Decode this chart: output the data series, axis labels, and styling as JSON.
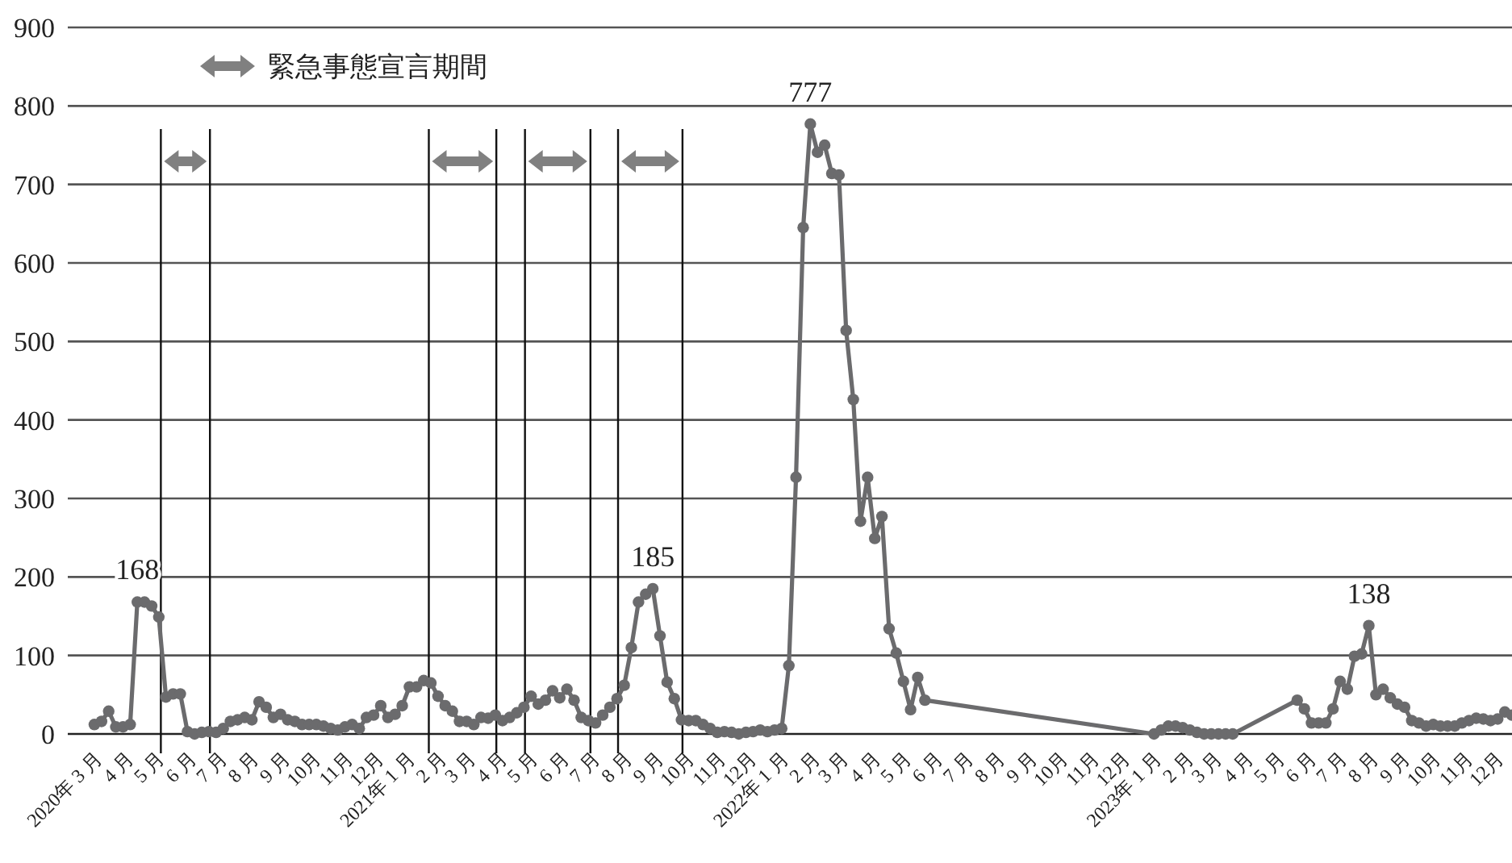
{
  "chart_data": {
    "type": "line",
    "marker": "circle",
    "line_style": "solid",
    "grid": "y",
    "xlim": [
      "2020-01-31",
      "2023-12-13"
    ],
    "xticks": [
      {
        "value": "2020-03",
        "label": "2020年 3 月"
      },
      {
        "value": "2020-04",
        "label": "4 月"
      },
      {
        "value": "2020-05",
        "label": "5 月"
      },
      {
        "value": "2020-06",
        "label": "6 月"
      },
      {
        "value": "2020-07",
        "label": "7 月"
      },
      {
        "value": "2020-08",
        "label": "8 月"
      },
      {
        "value": "2020-09",
        "label": "9 月"
      },
      {
        "value": "2020-10",
        "label": "10月"
      },
      {
        "value": "2020-11",
        "label": "11月"
      },
      {
        "value": "2020-12",
        "label": "12月"
      },
      {
        "value": "2021-01",
        "label": "2021年 1 月"
      },
      {
        "value": "2021-02",
        "label": "2 月"
      },
      {
        "value": "2021-03",
        "label": "3 月"
      },
      {
        "value": "2021-04",
        "label": "4 月"
      },
      {
        "value": "2021-05",
        "label": "5 月"
      },
      {
        "value": "2021-06",
        "label": "6 月"
      },
      {
        "value": "2021-07",
        "label": "7 月"
      },
      {
        "value": "2021-08",
        "label": "8 月"
      },
      {
        "value": "2021-09",
        "label": "9 月"
      },
      {
        "value": "2021-10",
        "label": "10月"
      },
      {
        "value": "2021-11",
        "label": "11月"
      },
      {
        "value": "2021-12",
        "label": "12月"
      },
      {
        "value": "2022-01",
        "label": "2022年 1 月"
      },
      {
        "value": "2022-02",
        "label": "2 月"
      },
      {
        "value": "2022-03",
        "label": "3 月"
      },
      {
        "value": "2022-04",
        "label": "4 月"
      },
      {
        "value": "2022-05",
        "label": "5 月"
      },
      {
        "value": "2022-06",
        "label": "6 月"
      },
      {
        "value": "2022-07",
        "label": "7 月"
      },
      {
        "value": "2022-08",
        "label": "8 月"
      },
      {
        "value": "2022-09",
        "label": "9 月"
      },
      {
        "value": "2022-10",
        "label": "10月"
      },
      {
        "value": "2022-11",
        "label": "11月"
      },
      {
        "value": "2022-12",
        "label": "12月"
      },
      {
        "value": "2023-01",
        "label": "2023年 1 月"
      },
      {
        "value": "2023-02",
        "label": "2 月"
      },
      {
        "value": "2023-03",
        "label": "3 月"
      },
      {
        "value": "2023-04",
        "label": "4 月"
      },
      {
        "value": "2023-05",
        "label": "5 月"
      },
      {
        "value": "2023-06",
        "label": "6 月"
      },
      {
        "value": "2023-07",
        "label": "7 月"
      },
      {
        "value": "2023-08",
        "label": "8 月"
      },
      {
        "value": "2023-09",
        "label": "9 月"
      },
      {
        "value": "2023-10",
        "label": "10月"
      },
      {
        "value": "2023-11",
        "label": "11月"
      },
      {
        "value": "2023-12",
        "label": "12月"
      }
    ],
    "ylim": [
      0,
      900
    ],
    "yticks": [
      0,
      100,
      200,
      300,
      400,
      500,
      600,
      700,
      800,
      900
    ],
    "ref_lines": [
      {
        "axis": "x",
        "value": "2020-05-01",
        "color": "#111111"
      },
      {
        "axis": "x",
        "value": "2020-06-18",
        "color": "#111111"
      },
      {
        "axis": "x",
        "value": "2021-01-18",
        "color": "#111111"
      },
      {
        "axis": "x",
        "value": "2021-03-25",
        "color": "#111111"
      },
      {
        "axis": "x",
        "value": "2021-04-22",
        "color": "#111111"
      },
      {
        "axis": "x",
        "value": "2021-06-25",
        "color": "#111111"
      },
      {
        "axis": "x",
        "value": "2021-07-22",
        "color": "#111111"
      },
      {
        "axis": "x",
        "value": "2021-09-23",
        "color": "#111111"
      }
    ],
    "annotations": [
      "緊急事態宣言期間",
      {
        "text": "168",
        "x": "2020-04-08",
        "y": 168
      },
      {
        "text": "185",
        "x": "2021-08-25",
        "y": 185
      },
      {
        "text": "777",
        "x": "2022-01-26",
        "y": 777
      },
      {
        "text": "138",
        "x": "2023-07-26",
        "y": 138
      }
    ],
    "series": [
      {
        "color": "#6b6b6d",
        "x": [
          "2020-02-26",
          "2020-03-04",
          "2020-03-11",
          "2020-03-18",
          "2020-03-25",
          "2020-04-01",
          "2020-04-08",
          "2020-04-15",
          "2020-04-22",
          "2020-04-29",
          "2020-05-06",
          "2020-05-13",
          "2020-05-20",
          "2020-05-27",
          "2020-06-03",
          "2020-06-10",
          "2020-06-17",
          "2020-06-24",
          "2020-07-01",
          "2020-07-08",
          "2020-07-15",
          "2020-07-22",
          "2020-07-29",
          "2020-08-05",
          "2020-08-12",
          "2020-08-19",
          "2020-08-26",
          "2020-09-02",
          "2020-09-09",
          "2020-09-16",
          "2020-09-23",
          "2020-09-30",
          "2020-10-07",
          "2020-10-14",
          "2020-10-21",
          "2020-10-28",
          "2020-11-04",
          "2020-11-11",
          "2020-11-18",
          "2020-11-25",
          "2020-12-02",
          "2020-12-09",
          "2020-12-16",
          "2020-12-23",
          "2020-12-30",
          "2021-01-06",
          "2021-01-13",
          "2021-01-20",
          "2021-01-27",
          "2021-02-03",
          "2021-02-10",
          "2021-02-17",
          "2021-02-24",
          "2021-03-03",
          "2021-03-10",
          "2021-03-17",
          "2021-03-24",
          "2021-03-31",
          "2021-04-07",
          "2021-04-14",
          "2021-04-21",
          "2021-04-28",
          "2021-05-05",
          "2021-05-12",
          "2021-05-19",
          "2021-05-26",
          "2021-06-02",
          "2021-06-09",
          "2021-06-16",
          "2021-06-23",
          "2021-06-30",
          "2021-07-07",
          "2021-07-14",
          "2021-07-21",
          "2021-07-28",
          "2021-08-04",
          "2021-08-11",
          "2021-08-18",
          "2021-08-25",
          "2021-09-01",
          "2021-09-08",
          "2021-09-15",
          "2021-09-22",
          "2021-09-29",
          "2021-10-06",
          "2021-10-13",
          "2021-10-20",
          "2021-10-27",
          "2021-11-03",
          "2021-11-10",
          "2021-11-17",
          "2021-11-24",
          "2021-12-01",
          "2021-12-08",
          "2021-12-15",
          "2021-12-22",
          "2021-12-29",
          "2022-01-05",
          "2022-01-12",
          "2022-01-19",
          "2022-01-26",
          "2022-02-02",
          "2022-02-09",
          "2022-02-16",
          "2022-02-23",
          "2022-03-02",
          "2022-03-09",
          "2022-03-16",
          "2022-03-23",
          "2022-03-30",
          "2022-04-06",
          "2022-04-13",
          "2022-04-20",
          "2022-04-27",
          "2022-05-04",
          "2022-05-11",
          "2022-05-18",
          "2022-12-28",
          "2023-01-04",
          "2023-01-11",
          "2023-01-18",
          "2023-01-25",
          "2023-02-01",
          "2023-02-08",
          "2023-02-15",
          "2023-02-22",
          "2023-03-01",
          "2023-03-08",
          "2023-03-15",
          "2023-05-17",
          "2023-05-24",
          "2023-05-31",
          "2023-06-07",
          "2023-06-14",
          "2023-06-21",
          "2023-06-28",
          "2023-07-05",
          "2023-07-12",
          "2023-07-19",
          "2023-07-26",
          "2023-08-02",
          "2023-08-09",
          "2023-08-16",
          "2023-08-23",
          "2023-08-30",
          "2023-09-06",
          "2023-09-13",
          "2023-09-20",
          "2023-09-27",
          "2023-10-04",
          "2023-10-11",
          "2023-10-18",
          "2023-10-25",
          "2023-11-01",
          "2023-11-08",
          "2023-11-15",
          "2023-11-22",
          "2023-11-29",
          "2023-12-06",
          "2023-12-13"
        ],
        "values": [
          12,
          16,
          29,
          9,
          9,
          12,
          168,
          168,
          163,
          149,
          47,
          51,
          51,
          3,
          0,
          2,
          3,
          2,
          7,
          16,
          18,
          21,
          18,
          41,
          34,
          21,
          25,
          18,
          16,
          12,
          12,
          12,
          10,
          7,
          5,
          9,
          12,
          7,
          21,
          24,
          36,
          21,
          25,
          36,
          60,
          60,
          68,
          65,
          48,
          36,
          29,
          16,
          16,
          12,
          21,
          20,
          24,
          17,
          21,
          27,
          34,
          48,
          38,
          43,
          55,
          46,
          57,
          43,
          21,
          17,
          14,
          24,
          34,
          45,
          62,
          110,
          168,
          178,
          185,
          125,
          66,
          45,
          18,
          17,
          17,
          12,
          7,
          2,
          3,
          2,
          0,
          2,
          3,
          5,
          3,
          5,
          7,
          87,
          327,
          645,
          777,
          741,
          750,
          714,
          712,
          514,
          426,
          271,
          327,
          249,
          277,
          134,
          103,
          67,
          31,
          72,
          43,
          0,
          5,
          10,
          10,
          8,
          5,
          2,
          0,
          0,
          0,
          0,
          0,
          43,
          32,
          14,
          14,
          14,
          32,
          67,
          57,
          99,
          102,
          138,
          50,
          57,
          46,
          38,
          34,
          17,
          14,
          10,
          12,
          10,
          10,
          10,
          14,
          17,
          20,
          19,
          17,
          19,
          28,
          24
        ]
      }
    ]
  }
}
